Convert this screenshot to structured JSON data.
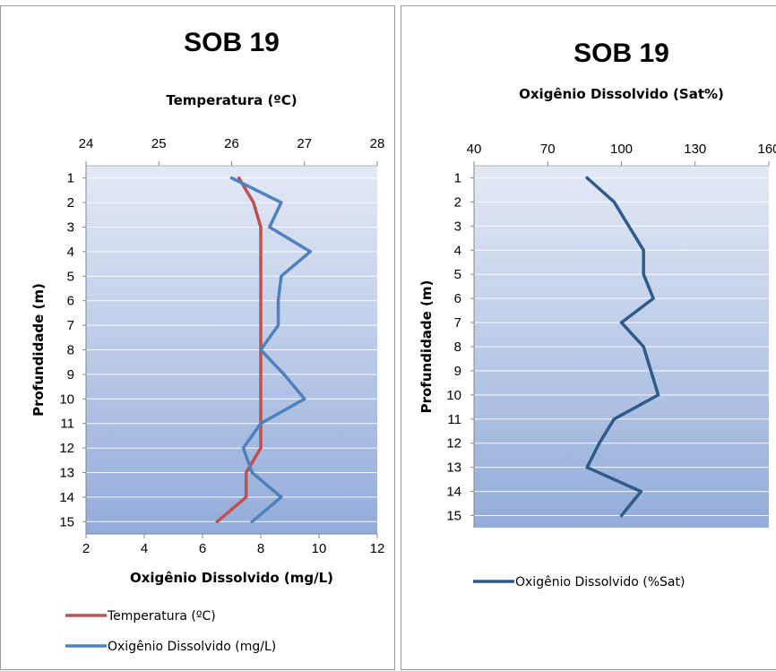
{
  "chart_data": [
    {
      "type": "line",
      "title": "SOB 19",
      "ylabel": "Profundidade (m)",
      "y": [
        1,
        2,
        3,
        4,
        5,
        6,
        7,
        8,
        9,
        10,
        11,
        12,
        13,
        14,
        15
      ],
      "y_ticks": [
        "1",
        "2",
        "3",
        "4",
        "5",
        "6",
        "7",
        "8",
        "9",
        "10",
        "11",
        "12",
        "13",
        "14",
        "15"
      ],
      "ylim": [
        0.5,
        15.5
      ],
      "y_inverted": true,
      "top_axis": {
        "label": "Temperatura (ºC)",
        "range": [
          24,
          28
        ],
        "ticks": [
          "24",
          "25",
          "26",
          "27",
          "28"
        ]
      },
      "bottom_axis": {
        "label": "Oxigênio Dissolvido  (mg/L)",
        "range": [
          2,
          12
        ],
        "ticks": [
          "2",
          "4",
          "6",
          "8",
          "10",
          "12"
        ]
      },
      "series": [
        {
          "name": "Temperatura (ºC)",
          "axis": "top",
          "color": "#c0504d",
          "values": [
            26.1,
            26.3,
            26.4,
            26.4,
            26.4,
            26.4,
            26.4,
            26.4,
            26.4,
            26.4,
            26.4,
            26.4,
            26.2,
            26.2,
            25.8
          ]
        },
        {
          "name": "Oxigênio Dissolvido (mg/L)",
          "axis": "bottom",
          "color": "#4f81bd",
          "values": [
            7.0,
            8.7,
            8.3,
            9.7,
            8.7,
            8.6,
            8.6,
            8.0,
            8.8,
            9.5,
            8.0,
            7.4,
            7.7,
            8.7,
            7.7
          ]
        }
      ],
      "grid": true,
      "legend_position": "bottom"
    },
    {
      "type": "line",
      "title": "SOB 19",
      "ylabel": "Profundidade (m)",
      "y": [
        1,
        2,
        3,
        4,
        5,
        6,
        7,
        8,
        9,
        10,
        11,
        12,
        13,
        14,
        15
      ],
      "y_ticks": [
        "1",
        "2",
        "3",
        "4",
        "5",
        "6",
        "7",
        "8",
        "9",
        "10",
        "11",
        "12",
        "13",
        "14",
        "15"
      ],
      "ylim": [
        0.5,
        15.5
      ],
      "y_inverted": true,
      "top_axis": {
        "label": "Oxigênio Dissolvido  (Sat%)",
        "range": [
          40,
          160
        ],
        "ticks": [
          "40",
          "70",
          "100",
          "130",
          "160"
        ]
      },
      "series": [
        {
          "name": "Oxigênio Dissolvido (%Sat)",
          "axis": "top",
          "color": "#2e5b8a",
          "values": [
            86,
            97,
            103,
            109,
            109,
            113,
            100,
            109,
            112,
            115,
            97,
            91,
            86,
            108,
            100
          ]
        }
      ],
      "grid": true,
      "legend_position": "bottom"
    }
  ]
}
